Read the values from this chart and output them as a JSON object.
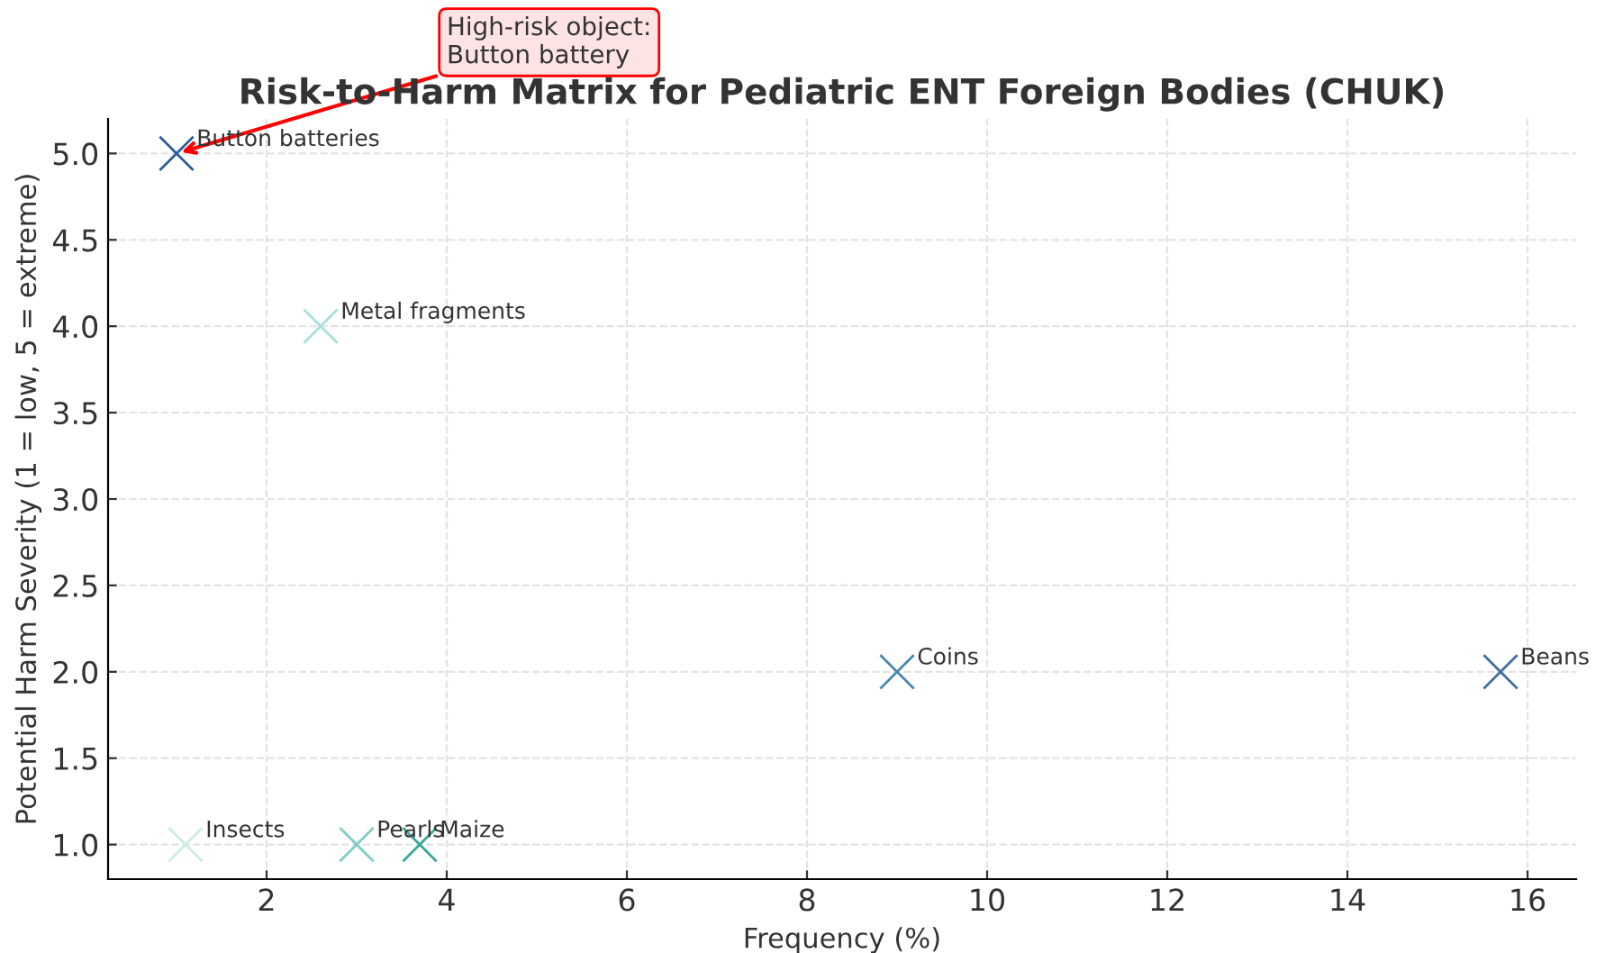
{
  "chart_data": {
    "type": "scatter",
    "title": "Risk-to-Harm Matrix for Pediatric ENT Foreign Bodies (CHUK)",
    "xlabel": "Frequency (%)",
    "ylabel": "Potential Harm Severity (1 = low, 5 = extreme)",
    "x": [
      1.0,
      2.6,
      1.1,
      3.0,
      3.7,
      9.0,
      15.7
    ],
    "values": [
      5.0,
      4.0,
      1.0,
      1.0,
      1.0,
      2.0,
      2.0
    ],
    "colors": [
      "#2c5f9a",
      "#a8e0dc",
      "#ccede0",
      "#7fcdc6",
      "#3aa89a",
      "#4a86b3",
      "#3f6f9e"
    ],
    "marker": "cross",
    "xlim": [
      0.24,
      16.54
    ],
    "ylim": [
      0.8,
      5.2
    ],
    "xticks": [
      2,
      4,
      6,
      8,
      10,
      12,
      14,
      16
    ],
    "yticks": [
      {
        "value": 1.0,
        "label": "1.0"
      },
      {
        "value": 1.5,
        "label": "1.5"
      },
      {
        "value": 2.0,
        "label": "2.0"
      },
      {
        "value": 2.5,
        "label": "2.5"
      },
      {
        "value": 3.0,
        "label": "3.0"
      },
      {
        "value": 3.5,
        "label": "3.5"
      },
      {
        "value": 4.0,
        "label": "4.0"
      },
      {
        "value": 4.5,
        "label": "4.5"
      },
      {
        "value": 5.0,
        "label": "5.0"
      }
    ],
    "grid": true,
    "annotations": [
      {
        "text": "High-risk object:\nButton battery",
        "x": 1.0,
        "y": 5.0
      },
      {
        "text": "Button batteries",
        "x": 1.0,
        "y": 5.0
      },
      {
        "text": "Metal fragments",
        "x": 2.6,
        "y": 4.0
      },
      {
        "text": "Insects",
        "x": 1.1,
        "y": 1.0
      },
      {
        "text": "Pearls",
        "x": 3.0,
        "y": 1.0
      },
      {
        "text": "Maize",
        "x": 3.7,
        "y": 1.0
      },
      {
        "text": "Coins",
        "x": 9.0,
        "y": 2.0
      },
      {
        "text": "Beans",
        "x": 15.7,
        "y": 2.0
      }
    ]
  }
}
